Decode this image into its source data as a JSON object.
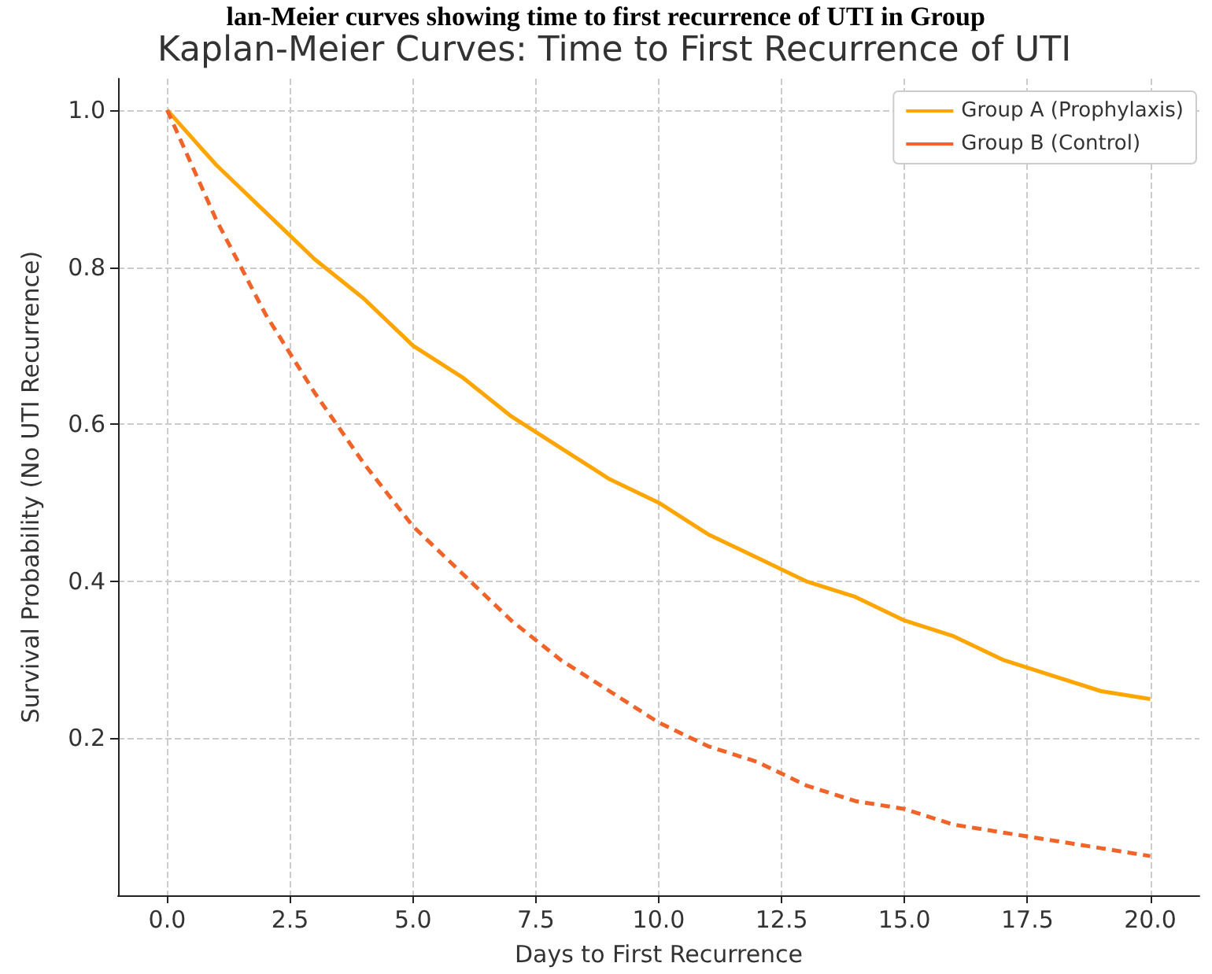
{
  "chart_data": {
    "type": "line",
    "title": "Kaplan-Meier Curves: Time to First Recurrence of UTI",
    "xlabel": "Days to First Recurrence",
    "ylabel": "Survival Probability (No UTI Recurrence)",
    "annotations": [
      "lan-Meier curves showing time to first recurrence of UTI in Group"
    ],
    "x": [
      0,
      1,
      2,
      3,
      4,
      5,
      6,
      7,
      8,
      9,
      10,
      11,
      12,
      13,
      14,
      15,
      16,
      17,
      18,
      19,
      20
    ],
    "series": [
      {
        "name": "Group A (Prophylaxis)",
        "color": "#ffa500",
        "line_style": "solid",
        "values": [
          1.0,
          0.93,
          0.87,
          0.81,
          0.76,
          0.7,
          0.66,
          0.61,
          0.57,
          0.53,
          0.5,
          0.46,
          0.43,
          0.4,
          0.38,
          0.35,
          0.33,
          0.3,
          0.28,
          0.26,
          0.25
        ]
      },
      {
        "name": "Group B (Control)",
        "color": "#f0642a",
        "line_style": "dashed",
        "values": [
          1.0,
          0.86,
          0.74,
          0.64,
          0.55,
          0.47,
          0.41,
          0.35,
          0.3,
          0.26,
          0.22,
          0.19,
          0.17,
          0.14,
          0.12,
          0.11,
          0.09,
          0.08,
          0.07,
          0.06,
          0.05
        ]
      }
    ],
    "xlim": [
      -1,
      21
    ],
    "xticks": [
      {
        "value": 0,
        "label": "0.0"
      },
      {
        "value": 2.5,
        "label": "2.5"
      },
      {
        "value": 5,
        "label": "5.0"
      },
      {
        "value": 7.5,
        "label": "7.5"
      },
      {
        "value": 10,
        "label": "10.0"
      },
      {
        "value": 12.5,
        "label": "12.5"
      },
      {
        "value": 15,
        "label": "15.0"
      },
      {
        "value": 17.5,
        "label": "17.5"
      },
      {
        "value": 20,
        "label": "20.0"
      }
    ],
    "ylim": [
      0,
      1.04
    ],
    "yticks": [
      {
        "value": 0.2,
        "label": "0.2"
      },
      {
        "value": 0.4,
        "label": "0.4"
      },
      {
        "value": 0.6,
        "label": "0.6"
      },
      {
        "value": 0.8,
        "label": "0.8"
      },
      {
        "value": 1.0,
        "label": "1.0"
      }
    ],
    "grid": true,
    "legend": "top right",
    "marker": "none"
  }
}
